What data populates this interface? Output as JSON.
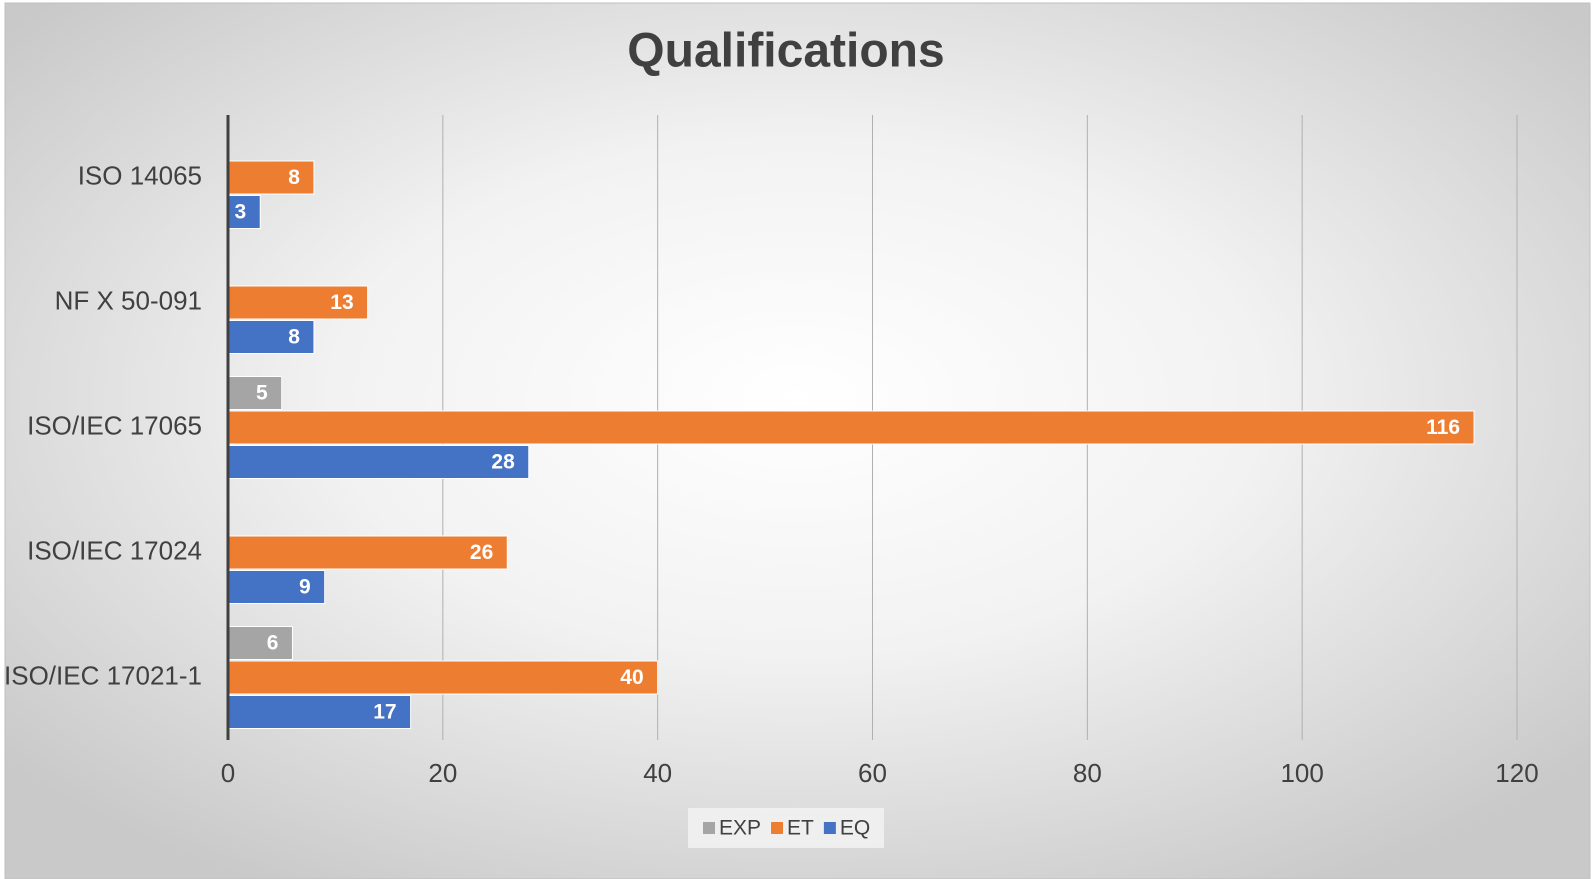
{
  "chart_data": {
    "type": "bar",
    "orientation": "horizontal",
    "title": "Qualifications",
    "categories": [
      "ISO 14065",
      "NF X 50-091",
      "ISO/IEC 17065",
      "ISO/IEC 17024",
      "ISO/IEC 17021-1"
    ],
    "series": [
      {
        "name": "EXP",
        "color": "#a5a5a5",
        "values": [
          null,
          null,
          5,
          null,
          6
        ]
      },
      {
        "name": "ET",
        "color": "#ed7d31",
        "values": [
          8,
          13,
          116,
          26,
          40
        ]
      },
      {
        "name": "EQ",
        "color": "#4472c4",
        "values": [
          3,
          8,
          28,
          9,
          17
        ]
      }
    ],
    "xlim": [
      0,
      120
    ],
    "xticks": [
      0,
      20,
      40,
      60,
      80,
      100,
      120
    ],
    "grid": true,
    "legend": "bottom",
    "data_labels": true
  }
}
